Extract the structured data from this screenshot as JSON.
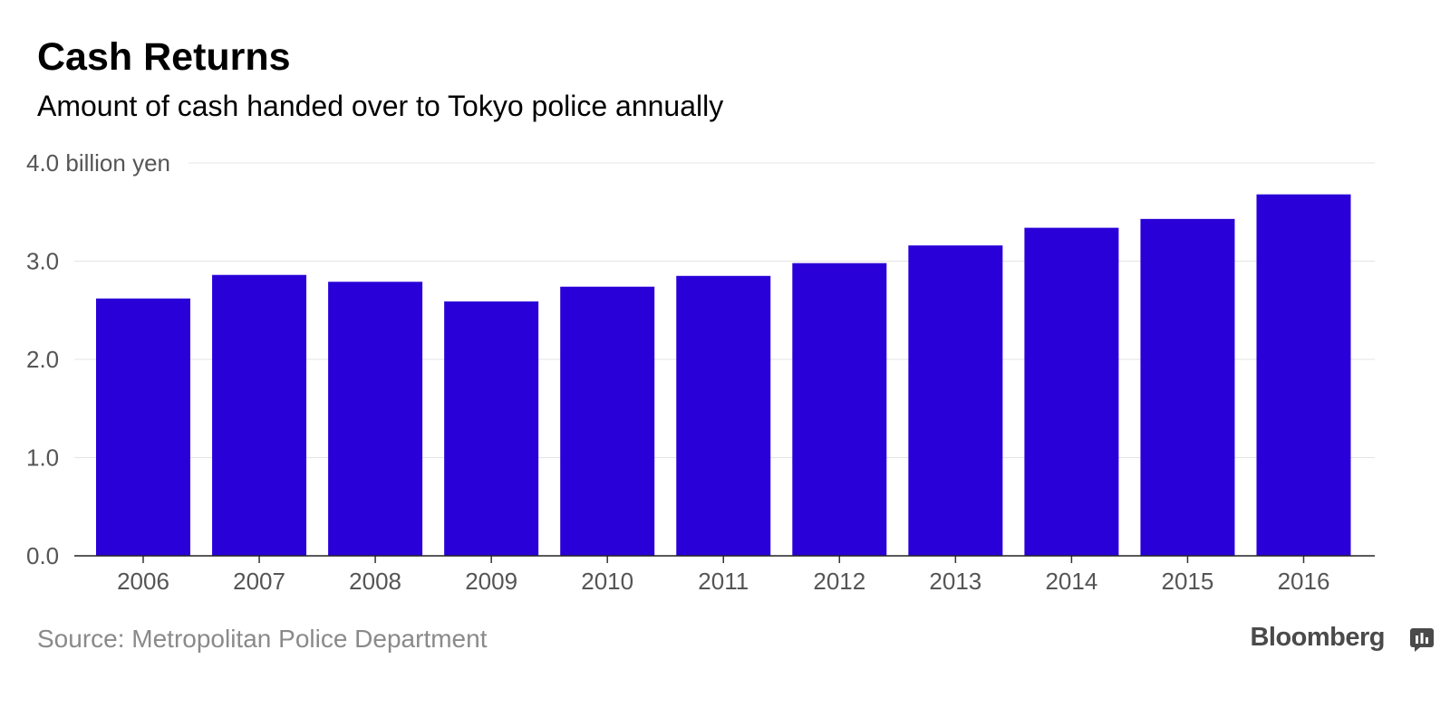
{
  "chart_data": {
    "type": "bar",
    "title": "Cash Returns",
    "subtitle": "Amount of cash handed over to Tokyo police annually",
    "ylabel": "billion yen",
    "ylim": [
      0,
      4.0
    ],
    "yticks": [
      "0.0",
      "1.0",
      "2.0",
      "3.0",
      "4.0"
    ],
    "top_tick_label": "4.0 billion yen",
    "categories": [
      "2006",
      "2007",
      "2008",
      "2009",
      "2010",
      "2011",
      "2012",
      "2013",
      "2014",
      "2015",
      "2016"
    ],
    "values": [
      2.62,
      2.86,
      2.79,
      2.59,
      2.74,
      2.85,
      2.98,
      3.16,
      3.34,
      3.43,
      3.68
    ],
    "grid": true,
    "legend": "none",
    "bar_color": "#2a00d8"
  },
  "footer": {
    "source": "Source: Metropolitan Police Department",
    "brand": "Bloomberg"
  },
  "icons": {
    "brand_icon": "bloomberg-chart-icon"
  }
}
